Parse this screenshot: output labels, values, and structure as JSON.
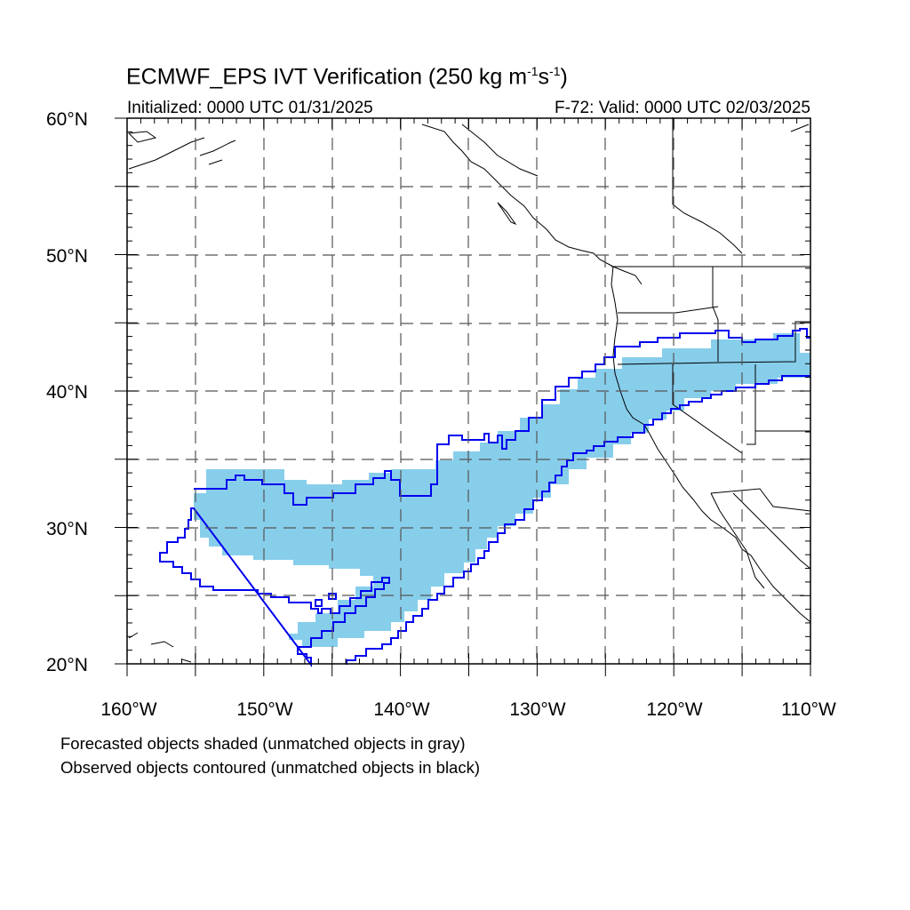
{
  "header": {
    "title_main": "ECMWF_EPS IVT Verification (250 kg m",
    "title_exp1": "-1",
    "title_mid": "s",
    "title_exp2": "-1",
    "title_end": ")",
    "initialized": "Initialized: 0000 UTC 01/31/2025",
    "valid": "F-72: Valid: 0000 UTC 02/03/2025"
  },
  "axes": {
    "lat_labels": [
      "60°N",
      "50°N",
      "40°N",
      "30°N",
      "20°N"
    ],
    "lon_labels": [
      "160°W",
      "150°W",
      "140°W",
      "130°W",
      "120°W",
      "110°W"
    ]
  },
  "map": {
    "extent": {
      "lon": [
        -160,
        -110
      ],
      "lat": [
        20,
        60
      ]
    },
    "forecast_color": "#87ceeb",
    "observed_contour_color": "#0000ff",
    "coast_color": "#000000",
    "grid_color": "#555555"
  },
  "legend": {
    "line1": "Forecasted objects shaded (unmatched objects in gray)",
    "line2": "Observed objects contoured (unmatched objects in black)"
  }
}
